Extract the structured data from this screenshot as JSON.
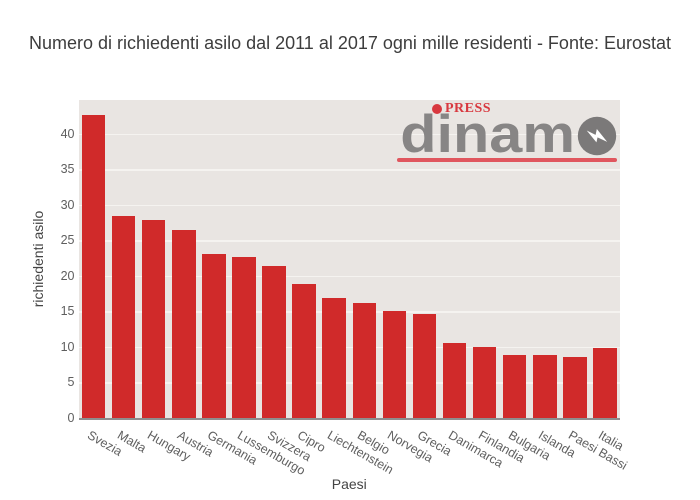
{
  "title": "Numero di richiedenti asilo dal 2011 al 2017 ogni mille residenti - Fonte: Eurostat",
  "watermark": {
    "press": "PRESS",
    "brand": "dinam",
    "brand_full": "dinamo"
  },
  "chart_data": {
    "type": "bar",
    "title": "Numero di richiedenti asilo dal 2011 al 2017 ogni mille residenti - Fonte: Eurostat",
    "xlabel": "Paesi",
    "ylabel": "richiedenti asilo",
    "categories": [
      "Svezia",
      "Malta",
      "Hungary",
      "Austria",
      "Germania",
      "Lussemburgo",
      "Svizzera",
      "Cipro",
      "Liechtenstein",
      "Belgio",
      "Norvegia",
      "Grecia",
      "Danimarca",
      "Finlandia",
      "Bulgaria",
      "Islanda",
      "Paesi Bassi",
      "Italia"
    ],
    "values": [
      42.7,
      28.5,
      28.0,
      26.5,
      23.1,
      22.8,
      21.5,
      19.0,
      17.0,
      16.2,
      15.2,
      14.7,
      10.7,
      10.1,
      9.0,
      8.9,
      8.7,
      9.9
    ],
    "ylim": [
      0,
      44.85
    ],
    "yticks": [
      0,
      5,
      10,
      15,
      20,
      25,
      30,
      35,
      40
    ],
    "grid": true,
    "legend_visible": false,
    "bar_color": "#d02a2a",
    "plot_bg": "#e9e5e2",
    "grid_color": "#f5f3f0"
  }
}
